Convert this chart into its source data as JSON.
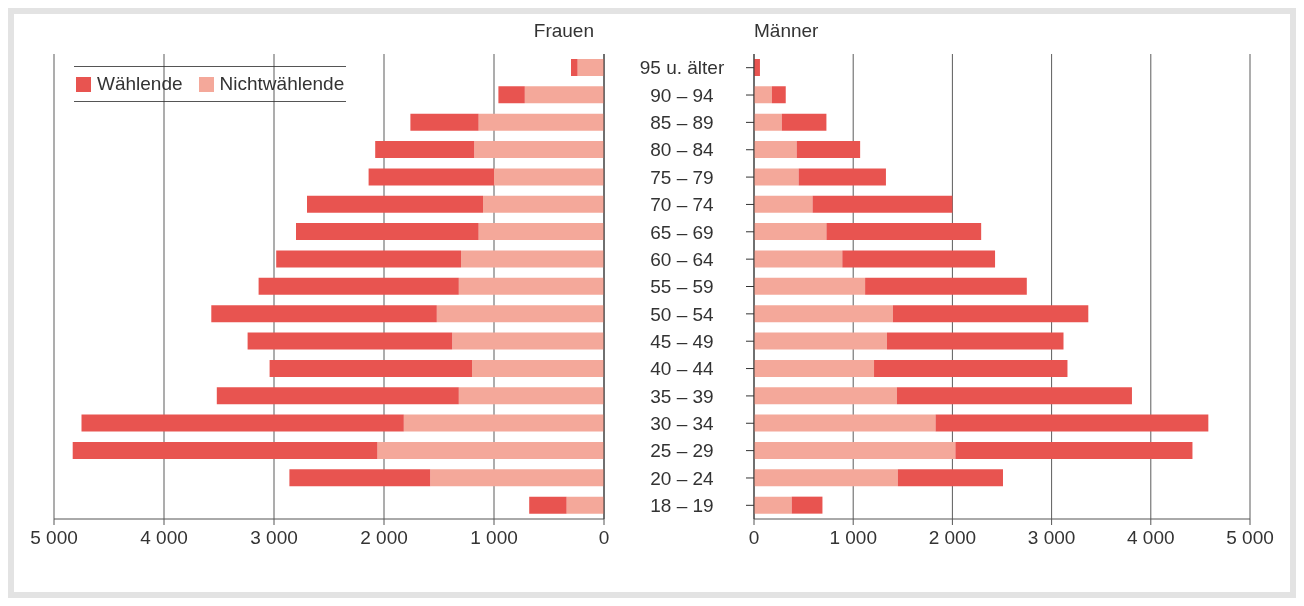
{
  "chart_data": [
    {
      "type": "bar",
      "orientation": "horizontal",
      "stacked": true,
      "title": "Frauen",
      "categories": [
        null,
        null,
        null,
        null,
        null,
        null,
        null,
        null,
        null,
        null,
        null,
        null,
        null,
        null,
        null,
        null,
        null
      ],
      "series": [
        {
          "name": "Nichtwählende",
          "color": "#f4a89a",
          "values": [
            240,
            720,
            1140,
            1180,
            1000,
            1100,
            1140,
            1300,
            1320,
            1520,
            1380,
            1200,
            1320,
            1820,
            2060,
            1580,
            340
          ]
        },
        {
          "name": "Wählende",
          "color": "#e85450",
          "values": [
            60,
            240,
            620,
            900,
            1140,
            1600,
            1660,
            1680,
            1820,
            2050,
            1860,
            1840,
            2200,
            2930,
            2770,
            1280,
            340
          ]
        }
      ],
      "xlim": [
        5000,
        0
      ],
      "xticks": [
        {
          "value": 5000,
          "label": "5 000"
        },
        {
          "value": 4000,
          "label": "4 000"
        },
        {
          "value": 3000,
          "label": "3 000"
        },
        {
          "value": 2000,
          "label": "2 000"
        },
        {
          "value": 1000,
          "label": "1 000"
        },
        0
      ],
      "grid": "x",
      "legend": "top left",
      "tick_labels": "x"
    },
    {
      "type": "bar",
      "orientation": "horizontal",
      "stacked": true,
      "title": "Männer",
      "categories": [
        "95 u. älter",
        "90 – 94",
        "85 – 89",
        "80 – 84",
        "75 – 79",
        "70 – 74",
        "65 – 69",
        "60 – 64",
        "55 – 59",
        "50 – 54",
        "45 – 49",
        "40 – 44",
        "35 – 39",
        "30 – 34",
        "25 – 29",
        "20 – 24",
        "18 – 19"
      ],
      "series": [
        {
          "color": "#f4a89a",
          "values": [
            null,
            180,
            280,
            430,
            450,
            590,
            730,
            890,
            1120,
            1400,
            1340,
            1210,
            1440,
            1830,
            2030,
            1450,
            380
          ]
        },
        {
          "color": "#e85450",
          "values": [
            60,
            140,
            450,
            640,
            880,
            1410,
            1560,
            1540,
            1630,
            1970,
            1780,
            1950,
            2370,
            2750,
            2390,
            1060,
            310
          ]
        }
      ],
      "xlim": [
        0,
        5000
      ],
      "xticks": [
        0,
        {
          "value": 1000,
          "label": "1 000"
        },
        {
          "value": 2000,
          "label": "2 000"
        },
        {
          "value": 3000,
          "label": "3 000"
        },
        {
          "value": 4000,
          "label": "4 000"
        },
        {
          "value": 5000,
          "label": "5 000"
        }
      ],
      "grid": "x"
    }
  ]
}
